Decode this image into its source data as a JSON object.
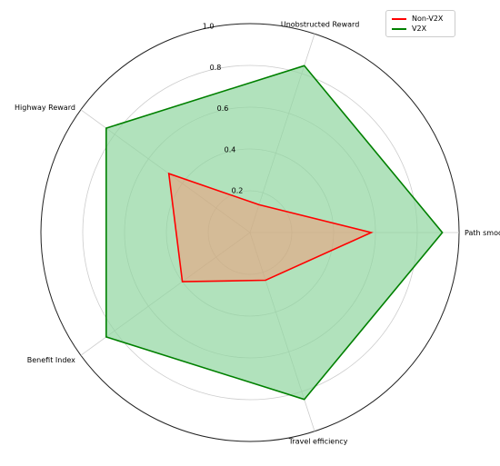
{
  "chart_data": {
    "type": "radar",
    "axes": [
      "Path smoothness",
      "Unobstructed Reward",
      "Highway Reward",
      "Benefit Index",
      "Travel efficiency"
    ],
    "radial_ticks": [
      0.2,
      0.4,
      0.6,
      0.8,
      1.0
    ],
    "radial_tick_labels": [
      "0.2",
      "0.4",
      "0.6",
      "0.8",
      "1.0"
    ],
    "rlim": [
      0,
      1.0
    ],
    "grid": true,
    "legend_position": "top-right",
    "series": [
      {
        "name": "Non-V2X",
        "color": "#ff0000",
        "values": [
          0.58,
          0.14,
          0.48,
          0.4,
          0.24
        ]
      },
      {
        "name": "V2X",
        "color": "#008000",
        "fill": "#90d5a0",
        "values": [
          0.92,
          0.84,
          0.85,
          0.85,
          0.84
        ]
      }
    ]
  }
}
